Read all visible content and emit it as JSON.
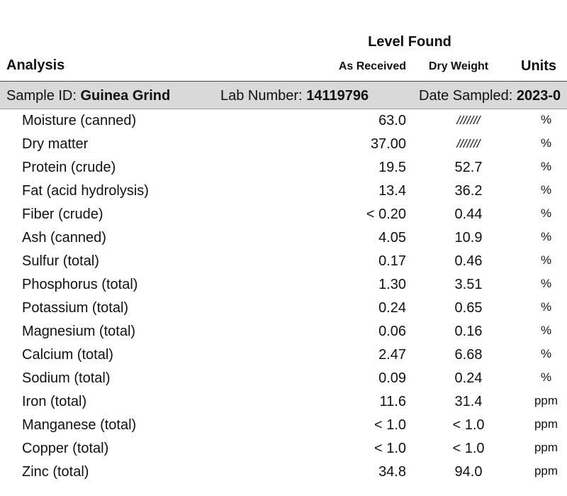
{
  "header": {
    "level_found": "Level Found",
    "analysis": "Analysis",
    "as_received": "As Received",
    "dry_weight": "Dry Weight",
    "units": "Units"
  },
  "sample": {
    "sample_id_label": "Sample ID:",
    "sample_id": "Guinea Grind",
    "lab_number_label": "Lab Number:",
    "lab_number": "14119796",
    "date_sampled_label": "Date Sampled:",
    "date_sampled": "2023-0"
  },
  "rows": [
    {
      "name": "Moisture (canned)",
      "as_received": "63.0",
      "dry_weight": "///////",
      "units": "%"
    },
    {
      "name": "Dry matter",
      "as_received": "37.00",
      "dry_weight": "///////",
      "units": "%"
    },
    {
      "name": "Protein (crude)",
      "as_received": "19.5",
      "dry_weight": "52.7",
      "units": "%"
    },
    {
      "name": "Fat (acid hydrolysis)",
      "as_received": "13.4",
      "dry_weight": "36.2",
      "units": "%"
    },
    {
      "name": "Fiber (crude)",
      "as_received": "< 0.20",
      "dry_weight": "0.44",
      "units": "%"
    },
    {
      "name": "Ash (canned)",
      "as_received": "4.05",
      "dry_weight": "10.9",
      "units": "%"
    },
    {
      "name": "Sulfur (total)",
      "as_received": "0.17",
      "dry_weight": "0.46",
      "units": "%"
    },
    {
      "name": "Phosphorus (total)",
      "as_received": "1.30",
      "dry_weight": "3.51",
      "units": "%"
    },
    {
      "name": "Potassium (total)",
      "as_received": "0.24",
      "dry_weight": "0.65",
      "units": "%"
    },
    {
      "name": "Magnesium (total)",
      "as_received": "0.06",
      "dry_weight": "0.16",
      "units": "%"
    },
    {
      "name": "Calcium (total)",
      "as_received": "2.47",
      "dry_weight": "6.68",
      "units": "%"
    },
    {
      "name": "Sodium (total)",
      "as_received": "0.09",
      "dry_weight": "0.24",
      "units": "%"
    },
    {
      "name": "Iron (total)",
      "as_received": "11.6",
      "dry_weight": "31.4",
      "units": "ppm"
    },
    {
      "name": "Manganese (total)",
      "as_received": "< 1.0",
      "dry_weight": "< 1.0",
      "units": "ppm"
    },
    {
      "name": "Copper (total)",
      "as_received": "< 1.0",
      "dry_weight": "< 1.0",
      "units": "ppm"
    },
    {
      "name": "Zinc (total)",
      "as_received": "34.8",
      "dry_weight": "94.0",
      "units": "ppm"
    }
  ]
}
